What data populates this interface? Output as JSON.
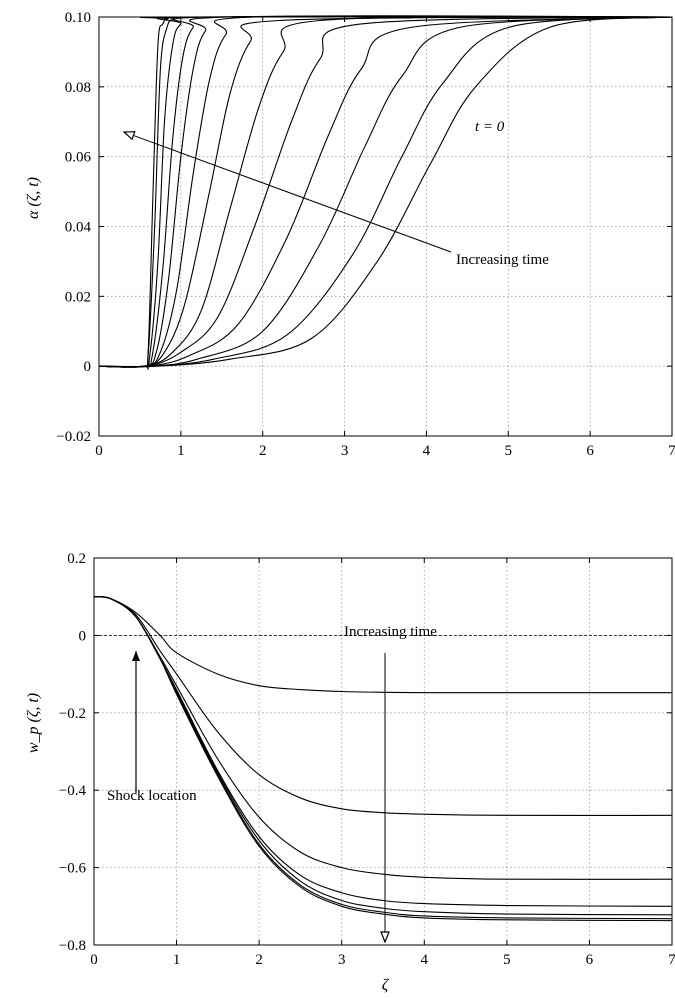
{
  "chart_data": [
    {
      "type": "line",
      "ylabel": "α (ζ, t)",
      "xlabel": "",
      "xlim": [
        0,
        7
      ],
      "ylim": [
        -0.02,
        0.1
      ],
      "xticks": [
        "0",
        "1",
        "2",
        "3",
        "4",
        "5",
        "6",
        "7"
      ],
      "yticks": [
        "−0.02",
        "0",
        "0.02",
        "0.04",
        "0.06",
        "0.08",
        "0.10"
      ],
      "ytick_values": [
        -0.02,
        0,
        0.02,
        0.04,
        0.06,
        0.08,
        0.1
      ],
      "grid": true,
      "annotations": [
        {
          "text": "t = 0"
        },
        {
          "text": "Increasing time"
        }
      ],
      "series": [
        {
          "x": [
            0,
            0.54,
            0.6,
            0.66,
            0.72,
            0.78,
            0.84,
            1.0,
            7
          ],
          "values": [
            0,
            0,
            0.004,
            0.05,
            0.092,
            0.098,
            0.0995,
            0.1,
            0.1
          ]
        },
        {
          "x": [
            0,
            0.54,
            0.6,
            0.68,
            0.75,
            0.83,
            0.92,
            1.1,
            7
          ],
          "values": [
            0,
            0,
            0.003,
            0.04,
            0.085,
            0.097,
            0.0995,
            0.1,
            0.1
          ]
        },
        {
          "x": [
            0,
            0.55,
            0.62,
            0.72,
            0.8,
            0.9,
            1.0,
            1.2,
            7
          ],
          "values": [
            0,
            0,
            0.003,
            0.03,
            0.07,
            0.092,
            0.098,
            0.1,
            0.1
          ]
        },
        {
          "x": [
            0,
            0.55,
            0.65,
            0.78,
            0.9,
            1.02,
            1.15,
            1.4,
            7
          ],
          "values": [
            0,
            0,
            0.003,
            0.028,
            0.065,
            0.088,
            0.097,
            0.1,
            0.1
          ]
        },
        {
          "x": [
            0,
            0.55,
            0.7,
            0.85,
            1.0,
            1.15,
            1.3,
            1.6,
            7
          ],
          "values": [
            0,
            0,
            0.004,
            0.025,
            0.06,
            0.085,
            0.096,
            0.1,
            0.1
          ]
        },
        {
          "x": [
            0,
            0.56,
            0.75,
            0.95,
            1.15,
            1.35,
            1.55,
            1.9,
            7
          ],
          "values": [
            0,
            0,
            0.004,
            0.022,
            0.055,
            0.082,
            0.095,
            0.1,
            0.1
          ]
        },
        {
          "x": [
            0,
            0.56,
            0.8,
            1.05,
            1.35,
            1.6,
            1.85,
            2.2,
            7
          ],
          "values": [
            0,
            0,
            0.004,
            0.018,
            0.05,
            0.078,
            0.093,
            0.099,
            0.1
          ]
        },
        {
          "x": [
            0,
            0.57,
            0.9,
            1.25,
            1.6,
            1.95,
            2.25,
            2.7,
            7
          ],
          "values": [
            0,
            0,
            0.004,
            0.016,
            0.045,
            0.074,
            0.09,
            0.099,
            0.1
          ]
        },
        {
          "x": [
            0,
            0.58,
            1.0,
            1.45,
            1.9,
            2.35,
            2.7,
            3.2,
            7
          ],
          "values": [
            0,
            0,
            0.004,
            0.014,
            0.04,
            0.07,
            0.088,
            0.098,
            0.1
          ]
        },
        {
          "x": [
            0,
            0.6,
            1.1,
            1.7,
            2.3,
            2.8,
            3.2,
            3.8,
            7
          ],
          "values": [
            0,
            0,
            0.003,
            0.012,
            0.037,
            0.066,
            0.085,
            0.097,
            0.1
          ]
        },
        {
          "x": [
            0,
            0.62,
            1.2,
            2.0,
            2.7,
            3.25,
            3.7,
            4.4,
            7
          ],
          "values": [
            0,
            0,
            0.002,
            0.01,
            0.035,
            0.063,
            0.083,
            0.097,
            0.1
          ]
        },
        {
          "x": [
            0,
            0.65,
            1.4,
            2.3,
            3.1,
            3.7,
            4.2,
            5.0,
            7
          ],
          "values": [
            0,
            0,
            0.002,
            0.009,
            0.032,
            0.06,
            0.081,
            0.097,
            0.1
          ]
        },
        {
          "x": [
            0,
            0.7,
            1.6,
            2.6,
            3.4,
            4.05,
            4.6,
            5.5,
            7
          ],
          "values": [
            0,
            0,
            0.002,
            0.008,
            0.03,
            0.058,
            0.08,
            0.097,
            0.1
          ]
        }
      ]
    },
    {
      "type": "line",
      "ylabel": "w_p (ζ, t)",
      "xlabel": "ζ",
      "xlim": [
        0,
        7
      ],
      "ylim": [
        -0.8,
        0.2
      ],
      "xticks": [
        "0",
        "1",
        "2",
        "3",
        "4",
        "5",
        "6",
        "7"
      ],
      "yticks": [
        "−0.8",
        "−0.6",
        "−0.4",
        "−0.2",
        "0",
        "0.2"
      ],
      "ytick_values": [
        -0.8,
        -0.6,
        -0.4,
        -0.2,
        0,
        0.2
      ],
      "grid": true,
      "annotations": [
        {
          "text": "Increasing time"
        },
        {
          "text": "Shock location"
        }
      ],
      "series": [
        {
          "x": [
            0,
            0.2,
            0.5,
            0.8,
            1.0,
            1.5,
            2.0,
            2.5,
            3.0,
            3.5,
            4.0,
            5.0,
            7.0
          ],
          "values": [
            0.1,
            0.095,
            0.06,
            0.0,
            -0.045,
            -0.1,
            -0.13,
            -0.14,
            -0.145,
            -0.147,
            -0.148,
            -0.148,
            -0.148
          ]
        },
        {
          "x": [
            0,
            0.2,
            0.5,
            0.8,
            1.0,
            1.5,
            2.0,
            2.5,
            3.0,
            3.5,
            4.0,
            5.0,
            7.0
          ],
          "values": [
            0.1,
            0.095,
            0.055,
            -0.04,
            -0.1,
            -0.25,
            -0.36,
            -0.42,
            -0.448,
            -0.458,
            -0.462,
            -0.465,
            -0.465
          ]
        },
        {
          "x": [
            0,
            0.2,
            0.5,
            0.8,
            1.0,
            1.5,
            2.0,
            2.5,
            3.0,
            3.5,
            4.0,
            5.0,
            7.0
          ],
          "values": [
            0.1,
            0.095,
            0.05,
            -0.055,
            -0.13,
            -0.32,
            -0.47,
            -0.56,
            -0.6,
            -0.617,
            -0.625,
            -0.63,
            -0.63
          ]
        },
        {
          "x": [
            0,
            0.2,
            0.5,
            0.8,
            1.0,
            1.5,
            2.0,
            2.5,
            3.0,
            3.5,
            4.0,
            5.0,
            7.0
          ],
          "values": [
            0.1,
            0.095,
            0.05,
            -0.06,
            -0.14,
            -0.35,
            -0.52,
            -0.62,
            -0.665,
            -0.685,
            -0.693,
            -0.698,
            -0.7
          ]
        },
        {
          "x": [
            0,
            0.2,
            0.5,
            0.8,
            1.0,
            1.5,
            2.0,
            2.5,
            3.0,
            3.5,
            4.0,
            5.0,
            7.0
          ],
          "values": [
            0.1,
            0.095,
            0.05,
            -0.06,
            -0.145,
            -0.355,
            -0.53,
            -0.635,
            -0.685,
            -0.705,
            -0.714,
            -0.72,
            -0.722
          ]
        },
        {
          "x": [
            0,
            0.2,
            0.5,
            0.8,
            1.0,
            1.5,
            2.0,
            2.5,
            3.0,
            3.5,
            4.0,
            5.0,
            7.0
          ],
          "values": [
            0.1,
            0.095,
            0.05,
            -0.06,
            -0.15,
            -0.36,
            -0.54,
            -0.645,
            -0.695,
            -0.715,
            -0.725,
            -0.73,
            -0.732
          ]
        },
        {
          "x": [
            0,
            0.2,
            0.5,
            0.8,
            1.0,
            1.5,
            2.0,
            2.5,
            3.0,
            3.5,
            4.0,
            5.0,
            7.0
          ],
          "values": [
            0.1,
            0.095,
            0.05,
            -0.06,
            -0.152,
            -0.365,
            -0.545,
            -0.65,
            -0.7,
            -0.72,
            -0.73,
            -0.735,
            -0.737
          ]
        }
      ]
    }
  ]
}
